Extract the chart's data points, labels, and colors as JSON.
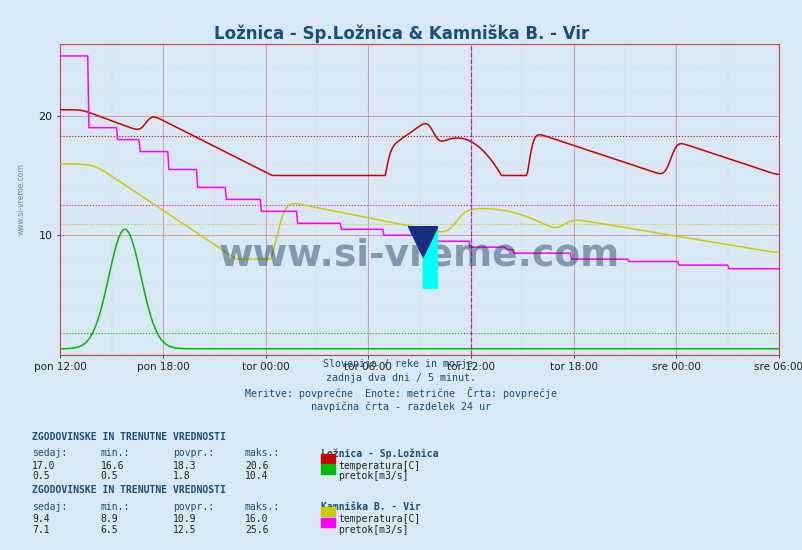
{
  "title": "Ložnica - Sp.Ložnica & Kamniška B. - Vir",
  "title_color": "#1a4f7a",
  "bg_color": "#d8e8f4",
  "plot_bg_color": "#d8e8f4",
  "x_ticks": [
    "pon 12:00",
    "pon 18:00",
    "tor 00:00",
    "tor 06:00",
    "tor 12:00",
    "tor 18:00",
    "sre 00:00",
    "sre 06:00"
  ],
  "y_min": 0,
  "y_max": 26,
  "y_ticks": [
    10,
    20
  ],
  "grid_color": "#cc4444",
  "vline_color": "#cc00cc",
  "vline_pos": 4,
  "watermark": "www.si-vreme.com",
  "watermark_color": "#1a3a5c",
  "watermark_alpha": 0.45,
  "subtitle_lines": [
    "Slovenija / reke in morje.",
    "zadnja dva dni / 5 minut.",
    "Meritve: povprečne  Enote: metrične  Črta: povprečje",
    "navpična črta - razdelek 24 ur"
  ],
  "subtitle_color": "#1a4f7a",
  "colors": {
    "loznica_temp": "#cc0000",
    "loznica_pretok": "#00bb00",
    "kamnica_temp": "#cccc00",
    "kamnica_pretok": "#ff00ff"
  },
  "dashed_lines": {
    "loznica_temp_povpr": 18.3,
    "loznica_pretok_povpr": 1.8,
    "kamnica_temp_povpr": 10.9,
    "kamnica_pretok_povpr": 12.5
  },
  "table1_header": "ZGODOVINSKE IN TRENUTNE VREDNOSTI",
  "table1_cols": [
    "sedaj:",
    "min.:",
    "povpr.:",
    "maks.:"
  ],
  "table1_station": "Ložnica - Sp.Ložnica",
  "table1_temp": [
    17.0,
    16.6,
    18.3,
    20.6
  ],
  "table1_pretok": [
    0.5,
    0.5,
    1.8,
    10.4
  ],
  "table1_temp_label": "temperatura[C]",
  "table1_pretok_label": "pretok[m3/s]",
  "table2_header": "ZGODOVINSKE IN TRENUTNE VREDNOSTI",
  "table2_cols": [
    "sedaj:",
    "min.:",
    "povpr.:",
    "maks.:"
  ],
  "table2_station": "Kamniška B. - Vir",
  "table2_temp": [
    9.4,
    8.9,
    10.9,
    16.0
  ],
  "table2_pretok": [
    7.1,
    6.5,
    12.5,
    25.6
  ],
  "table2_temp_label": "temperatura[C]",
  "table2_pretok_label": "pretok[m3/s]"
}
